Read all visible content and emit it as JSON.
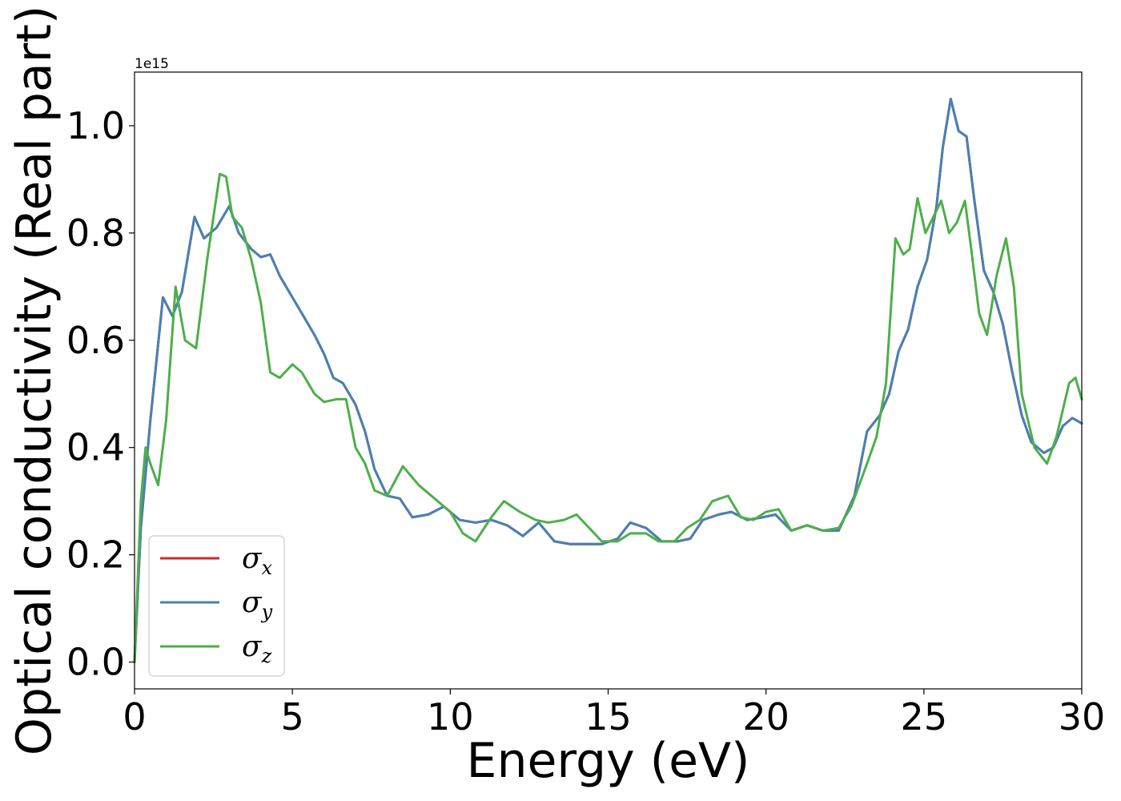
{
  "chart_data": {
    "type": "line",
    "xlabel": "Energy (eV)",
    "ylabel": "Optical conductivity (Real part)",
    "y_offset_label": "1e15",
    "xlim": [
      0,
      30
    ],
    "ylim": [
      -0.05,
      1.1
    ],
    "xticks": [
      0,
      5,
      10,
      15,
      20,
      25,
      30
    ],
    "xtick_labels": [
      "0",
      "5",
      "10",
      "15",
      "20",
      "25",
      "30"
    ],
    "yticks": [
      0.0,
      0.2,
      0.4,
      0.6,
      0.8,
      1.0
    ],
    "ytick_labels": [
      "0.0",
      "0.2",
      "0.4",
      "0.6",
      "0.8",
      "1.0"
    ],
    "grid": false,
    "legend_position": "lower-left",
    "series": [
      {
        "name": "σx",
        "symbol": "σ",
        "subscript": "x",
        "color": "#d62728",
        "x": [
          0,
          0.2,
          0.5,
          0.9,
          1.2,
          1.5,
          1.9,
          2.2,
          2.6,
          3.0,
          3.3,
          3.7,
          4.0,
          4.3,
          4.6,
          5.0,
          5.3,
          5.7,
          6.0,
          6.3,
          6.6,
          7.0,
          7.3,
          7.6,
          8.0,
          8.4,
          8.8,
          9.3,
          9.8,
          10.3,
          10.8,
          11.3,
          11.8,
          12.3,
          12.8,
          13.3,
          13.8,
          14.3,
          14.8,
          15.3,
          15.7,
          16.2,
          16.7,
          17.2,
          17.6,
          18.0,
          18.5,
          18.9,
          19.4,
          19.9,
          20.3,
          20.8,
          21.3,
          21.8,
          22.3,
          22.8,
          23.2,
          23.6,
          23.9,
          24.2,
          24.5,
          24.8,
          25.1,
          25.4,
          25.6,
          25.85,
          26.1,
          26.35,
          26.6,
          26.9,
          27.2,
          27.5,
          27.8,
          28.1,
          28.4,
          28.8,
          29.1,
          29.4,
          29.7,
          30.0
        ],
        "y": [
          0.0,
          0.25,
          0.45,
          0.68,
          0.645,
          0.69,
          0.83,
          0.79,
          0.81,
          0.85,
          0.8,
          0.77,
          0.755,
          0.76,
          0.72,
          0.68,
          0.65,
          0.61,
          0.575,
          0.53,
          0.52,
          0.48,
          0.43,
          0.36,
          0.31,
          0.305,
          0.27,
          0.275,
          0.29,
          0.265,
          0.26,
          0.265,
          0.255,
          0.235,
          0.26,
          0.225,
          0.22,
          0.22,
          0.22,
          0.23,
          0.26,
          0.25,
          0.225,
          0.225,
          0.23,
          0.265,
          0.275,
          0.28,
          0.265,
          0.27,
          0.275,
          0.245,
          0.255,
          0.245,
          0.245,
          0.31,
          0.43,
          0.46,
          0.5,
          0.58,
          0.62,
          0.7,
          0.75,
          0.85,
          0.96,
          1.05,
          0.99,
          0.98,
          0.86,
          0.73,
          0.69,
          0.63,
          0.54,
          0.46,
          0.41,
          0.39,
          0.4,
          0.44,
          0.455,
          0.445
        ]
      },
      {
        "name": "σy",
        "symbol": "σ",
        "subscript": "y",
        "color": "#4682b4",
        "x": [
          0,
          0.2,
          0.5,
          0.9,
          1.2,
          1.5,
          1.9,
          2.2,
          2.6,
          3.0,
          3.3,
          3.7,
          4.0,
          4.3,
          4.6,
          5.0,
          5.3,
          5.7,
          6.0,
          6.3,
          6.6,
          7.0,
          7.3,
          7.6,
          8.0,
          8.4,
          8.8,
          9.3,
          9.8,
          10.3,
          10.8,
          11.3,
          11.8,
          12.3,
          12.8,
          13.3,
          13.8,
          14.3,
          14.8,
          15.3,
          15.7,
          16.2,
          16.7,
          17.2,
          17.6,
          18.0,
          18.5,
          18.9,
          19.4,
          19.9,
          20.3,
          20.8,
          21.3,
          21.8,
          22.3,
          22.8,
          23.2,
          23.6,
          23.9,
          24.2,
          24.5,
          24.8,
          25.1,
          25.4,
          25.6,
          25.85,
          26.1,
          26.35,
          26.6,
          26.9,
          27.2,
          27.5,
          27.8,
          28.1,
          28.4,
          28.8,
          29.1,
          29.4,
          29.7,
          30.0
        ],
        "y": [
          0.0,
          0.25,
          0.45,
          0.68,
          0.645,
          0.69,
          0.83,
          0.79,
          0.81,
          0.85,
          0.8,
          0.77,
          0.755,
          0.76,
          0.72,
          0.68,
          0.65,
          0.61,
          0.575,
          0.53,
          0.52,
          0.48,
          0.43,
          0.36,
          0.31,
          0.305,
          0.27,
          0.275,
          0.29,
          0.265,
          0.26,
          0.265,
          0.255,
          0.235,
          0.26,
          0.225,
          0.22,
          0.22,
          0.22,
          0.23,
          0.26,
          0.25,
          0.225,
          0.225,
          0.23,
          0.265,
          0.275,
          0.28,
          0.265,
          0.27,
          0.275,
          0.245,
          0.255,
          0.245,
          0.245,
          0.31,
          0.43,
          0.46,
          0.5,
          0.58,
          0.62,
          0.7,
          0.75,
          0.85,
          0.96,
          1.05,
          0.99,
          0.98,
          0.86,
          0.73,
          0.69,
          0.63,
          0.54,
          0.46,
          0.41,
          0.39,
          0.4,
          0.44,
          0.455,
          0.445
        ]
      },
      {
        "name": "σz",
        "symbol": "σ",
        "subscript": "z",
        "color": "#4daf4a",
        "x": [
          0,
          0.2,
          0.35,
          0.5,
          0.75,
          1.0,
          1.3,
          1.6,
          1.95,
          2.3,
          2.7,
          2.9,
          3.1,
          3.4,
          3.7,
          4.0,
          4.3,
          4.6,
          5.0,
          5.3,
          5.7,
          6.0,
          6.4,
          6.7,
          7.0,
          7.3,
          7.6,
          8.0,
          8.5,
          9.0,
          9.5,
          10.0,
          10.4,
          10.8,
          11.3,
          11.7,
          12.2,
          12.7,
          13.1,
          13.6,
          14.0,
          14.4,
          14.8,
          15.3,
          15.7,
          16.2,
          16.6,
          17.1,
          17.5,
          17.9,
          18.3,
          18.8,
          19.2,
          19.6,
          20.0,
          20.4,
          20.8,
          21.3,
          21.8,
          22.3,
          22.7,
          23.2,
          23.5,
          23.8,
          24.1,
          24.35,
          24.55,
          24.8,
          25.05,
          25.3,
          25.55,
          25.8,
          26.05,
          26.3,
          26.5,
          26.75,
          27.0,
          27.3,
          27.6,
          27.85,
          28.1,
          28.5,
          28.9,
          29.2,
          29.6,
          29.8,
          30.0
        ],
        "y": [
          0.0,
          0.3,
          0.4,
          0.37,
          0.33,
          0.45,
          0.7,
          0.6,
          0.585,
          0.75,
          0.91,
          0.905,
          0.83,
          0.81,
          0.75,
          0.67,
          0.54,
          0.53,
          0.555,
          0.54,
          0.5,
          0.485,
          0.49,
          0.49,
          0.4,
          0.37,
          0.32,
          0.31,
          0.365,
          0.33,
          0.305,
          0.28,
          0.24,
          0.225,
          0.27,
          0.3,
          0.28,
          0.265,
          0.26,
          0.265,
          0.275,
          0.25,
          0.225,
          0.225,
          0.24,
          0.24,
          0.225,
          0.225,
          0.25,
          0.265,
          0.3,
          0.31,
          0.27,
          0.265,
          0.28,
          0.285,
          0.245,
          0.255,
          0.245,
          0.25,
          0.29,
          0.37,
          0.42,
          0.52,
          0.79,
          0.76,
          0.77,
          0.865,
          0.8,
          0.83,
          0.86,
          0.8,
          0.82,
          0.86,
          0.77,
          0.65,
          0.61,
          0.72,
          0.79,
          0.7,
          0.5,
          0.4,
          0.37,
          0.42,
          0.52,
          0.53,
          0.49
        ]
      }
    ]
  }
}
